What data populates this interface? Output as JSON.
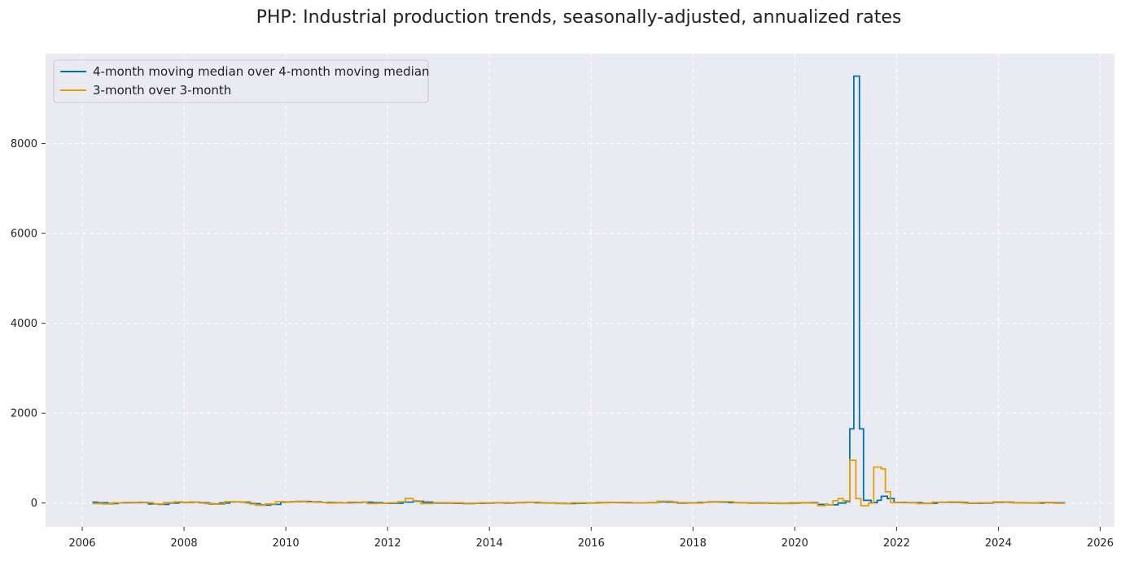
{
  "chart_data": {
    "type": "line",
    "title": "PHP: Industrial production trends, seasonally-adjusted, annualized rates",
    "xlabel": "",
    "ylabel": "",
    "xlim": [
      2005.28,
      2026.28
    ],
    "ylim": [
      -530,
      10000
    ],
    "x_ticks": [
      2006,
      2008,
      2010,
      2012,
      2014,
      2016,
      2018,
      2020,
      2022,
      2024,
      2026
    ],
    "x_tick_labels": [
      "2006",
      "2008",
      "2010",
      "2012",
      "2014",
      "2016",
      "2018",
      "2020",
      "2022",
      "2024",
      "2026"
    ],
    "y_ticks": [
      0,
      2000,
      4000,
      6000,
      8000
    ],
    "y_tick_labels": [
      "0",
      "2000",
      "4000",
      "6000",
      "8000"
    ],
    "grid": true,
    "legend_position": "top-left",
    "step": true,
    "series": [
      {
        "name": "4-month moving median over 4-month moving median",
        "color": "#0072B2",
        "points": [
          [
            2006.2,
            20
          ],
          [
            2006.3,
            5
          ],
          [
            2006.5,
            -10
          ],
          [
            2006.7,
            5
          ],
          [
            2006.9,
            10
          ],
          [
            2007.1,
            15
          ],
          [
            2007.3,
            -20
          ],
          [
            2007.5,
            -30
          ],
          [
            2007.7,
            0
          ],
          [
            2007.9,
            15
          ],
          [
            2008.1,
            20
          ],
          [
            2008.3,
            5
          ],
          [
            2008.5,
            -20
          ],
          [
            2008.7,
            0
          ],
          [
            2008.9,
            25
          ],
          [
            2009.1,
            20
          ],
          [
            2009.3,
            -15
          ],
          [
            2009.5,
            -45
          ],
          [
            2009.7,
            -30
          ],
          [
            2009.9,
            20
          ],
          [
            2010.1,
            30
          ],
          [
            2010.3,
            35
          ],
          [
            2010.5,
            25
          ],
          [
            2010.7,
            15
          ],
          [
            2010.9,
            10
          ],
          [
            2011.1,
            5
          ],
          [
            2011.3,
            10
          ],
          [
            2011.5,
            20
          ],
          [
            2011.7,
            10
          ],
          [
            2011.9,
            -5
          ],
          [
            2012.1,
            -5
          ],
          [
            2012.3,
            20
          ],
          [
            2012.5,
            40
          ],
          [
            2012.7,
            20
          ],
          [
            2012.9,
            0
          ],
          [
            2013.1,
            0
          ],
          [
            2013.3,
            -5
          ],
          [
            2013.5,
            -10
          ],
          [
            2013.7,
            -5
          ],
          [
            2013.9,
            0
          ],
          [
            2014.1,
            5
          ],
          [
            2014.3,
            0
          ],
          [
            2014.5,
            10
          ],
          [
            2014.7,
            15
          ],
          [
            2014.9,
            5
          ],
          [
            2015.1,
            0
          ],
          [
            2015.3,
            -5
          ],
          [
            2015.5,
            -10
          ],
          [
            2015.7,
            -5
          ],
          [
            2015.9,
            0
          ],
          [
            2016.1,
            10
          ],
          [
            2016.3,
            15
          ],
          [
            2016.5,
            10
          ],
          [
            2016.7,
            5
          ],
          [
            2016.9,
            5
          ],
          [
            2017.1,
            10
          ],
          [
            2017.3,
            25
          ],
          [
            2017.5,
            20
          ],
          [
            2017.7,
            0
          ],
          [
            2017.9,
            5
          ],
          [
            2018.1,
            15
          ],
          [
            2018.3,
            25
          ],
          [
            2018.5,
            20
          ],
          [
            2018.7,
            10
          ],
          [
            2018.9,
            5
          ],
          [
            2019.1,
            0
          ],
          [
            2019.3,
            0
          ],
          [
            2019.5,
            -5
          ],
          [
            2019.7,
            -5
          ],
          [
            2019.9,
            0
          ],
          [
            2020.1,
            5
          ],
          [
            2020.3,
            10
          ],
          [
            2020.45,
            -30
          ],
          [
            2020.65,
            -40
          ],
          [
            2020.85,
            0
          ],
          [
            2021.0,
            30
          ],
          [
            2021.08,
            1650
          ],
          [
            2021.16,
            9500
          ],
          [
            2021.27,
            1650
          ],
          [
            2021.35,
            60
          ],
          [
            2021.5,
            10
          ],
          [
            2021.62,
            60
          ],
          [
            2021.7,
            150
          ],
          [
            2021.82,
            100
          ],
          [
            2021.95,
            15
          ],
          [
            2022.2,
            10
          ],
          [
            2022.5,
            -5
          ],
          [
            2022.8,
            15
          ],
          [
            2023.1,
            15
          ],
          [
            2023.4,
            -5
          ],
          [
            2023.7,
            0
          ],
          [
            2023.9,
            15
          ],
          [
            2024.1,
            20
          ],
          [
            2024.3,
            5
          ],
          [
            2024.6,
            0
          ],
          [
            2024.9,
            10
          ],
          [
            2025.1,
            5
          ],
          [
            2025.3,
            0
          ]
        ]
      },
      {
        "name": "3-month over 3-month",
        "color": "#E69F00",
        "points": [
          [
            2006.2,
            -10
          ],
          [
            2006.4,
            -20
          ],
          [
            2006.6,
            5
          ],
          [
            2006.8,
            15
          ],
          [
            2007.0,
            5
          ],
          [
            2007.2,
            10
          ],
          [
            2007.4,
            -20
          ],
          [
            2007.6,
            10
          ],
          [
            2007.8,
            25
          ],
          [
            2008.0,
            10
          ],
          [
            2008.2,
            15
          ],
          [
            2008.4,
            -10
          ],
          [
            2008.6,
            -25
          ],
          [
            2008.8,
            30
          ],
          [
            2009.0,
            25
          ],
          [
            2009.2,
            0
          ],
          [
            2009.4,
            -50
          ],
          [
            2009.6,
            -20
          ],
          [
            2009.8,
            30
          ],
          [
            2010.0,
            25
          ],
          [
            2010.2,
            40
          ],
          [
            2010.4,
            20
          ],
          [
            2010.6,
            15
          ],
          [
            2010.8,
            0
          ],
          [
            2011.0,
            5
          ],
          [
            2011.2,
            20
          ],
          [
            2011.4,
            15
          ],
          [
            2011.6,
            -10
          ],
          [
            2011.8,
            -5
          ],
          [
            2012.0,
            5
          ],
          [
            2012.2,
            30
          ],
          [
            2012.35,
            100
          ],
          [
            2012.5,
            50
          ],
          [
            2012.65,
            -10
          ],
          [
            2012.9,
            10
          ],
          [
            2013.2,
            5
          ],
          [
            2013.5,
            -5
          ],
          [
            2013.8,
            5
          ],
          [
            2014.1,
            10
          ],
          [
            2014.4,
            5
          ],
          [
            2014.7,
            20
          ],
          [
            2015.0,
            0
          ],
          [
            2015.3,
            -10
          ],
          [
            2015.6,
            5
          ],
          [
            2015.9,
            0
          ],
          [
            2016.2,
            10
          ],
          [
            2016.5,
            15
          ],
          [
            2016.8,
            5
          ],
          [
            2017.1,
            10
          ],
          [
            2017.3,
            40
          ],
          [
            2017.6,
            10
          ],
          [
            2017.9,
            0
          ],
          [
            2018.2,
            20
          ],
          [
            2018.5,
            30
          ],
          [
            2018.8,
            10
          ],
          [
            2019.1,
            -5
          ],
          [
            2019.4,
            0
          ],
          [
            2019.7,
            -10
          ],
          [
            2020.0,
            10
          ],
          [
            2020.3,
            0
          ],
          [
            2020.45,
            -60
          ],
          [
            2020.6,
            -40
          ],
          [
            2020.75,
            50
          ],
          [
            2020.85,
            100
          ],
          [
            2020.95,
            50
          ],
          [
            2021.08,
            950
          ],
          [
            2021.2,
            100
          ],
          [
            2021.3,
            -60
          ],
          [
            2021.45,
            0
          ],
          [
            2021.55,
            800
          ],
          [
            2021.7,
            760
          ],
          [
            2021.78,
            250
          ],
          [
            2021.88,
            10
          ],
          [
            2022.1,
            5
          ],
          [
            2022.4,
            -10
          ],
          [
            2022.7,
            20
          ],
          [
            2023.0,
            25
          ],
          [
            2023.3,
            0
          ],
          [
            2023.6,
            5
          ],
          [
            2023.9,
            25
          ],
          [
            2024.2,
            10
          ],
          [
            2024.5,
            0
          ],
          [
            2024.8,
            15
          ],
          [
            2025.1,
            -5
          ],
          [
            2025.3,
            0
          ]
        ]
      }
    ]
  }
}
